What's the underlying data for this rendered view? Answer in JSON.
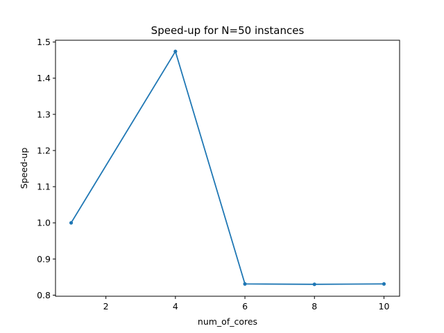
{
  "chart_data": {
    "type": "line",
    "title": "Speed-up for N=50 instances",
    "xlabel": "num_of_cores",
    "ylabel": "Speed-up",
    "xlim": [
      0.55,
      10.45
    ],
    "ylim": [
      0.797,
      1.505
    ],
    "xticks": [
      2,
      4,
      6,
      8,
      10
    ],
    "yticks": [
      0.8,
      0.9,
      1.0,
      1.1,
      1.2,
      1.3,
      1.4,
      1.5
    ],
    "xtick_labels": [
      "2",
      "4",
      "6",
      "8",
      "10"
    ],
    "ytick_labels": [
      "0.8",
      "0.9",
      "1.0",
      "1.1",
      "1.2",
      "1.3",
      "1.4",
      "1.5"
    ],
    "grid": false,
    "series": [
      {
        "x": [
          1,
          4,
          6,
          8,
          10
        ],
        "y": [
          1.0,
          1.474,
          0.831,
          0.83,
          0.831
        ],
        "color": "#1f77b4",
        "marker": "circle"
      }
    ]
  }
}
